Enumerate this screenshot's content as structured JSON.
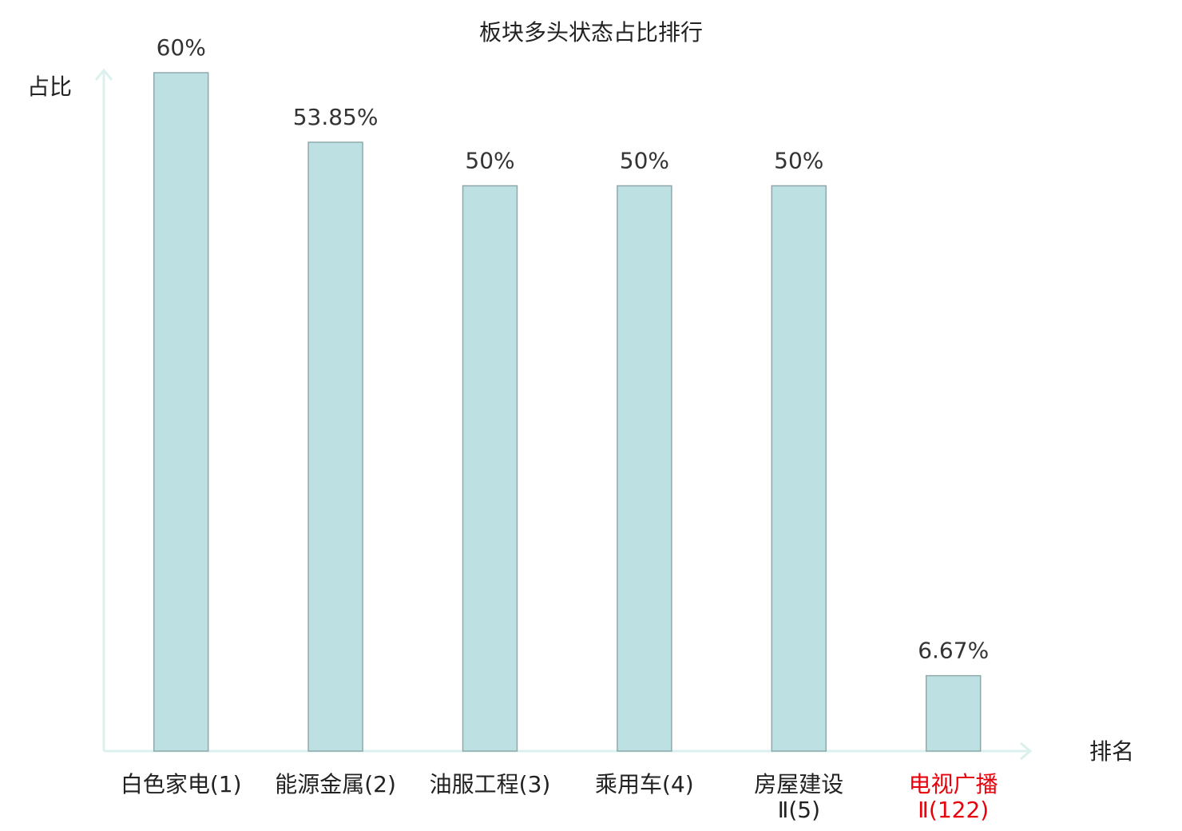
{
  "chart_data": {
    "type": "bar",
    "title": "板块多头状态占比排行",
    "y_label": "占比",
    "x_label": "排名",
    "categories": [
      "白色家电(1)",
      "能源金属(2)",
      "油服工程(3)",
      "乘用车(4)",
      "房屋建设\nⅡ(5)",
      "电视广播\nⅡ(122)"
    ],
    "category_colors": [
      "#222222",
      "#222222",
      "#222222",
      "#222222",
      "#222222",
      "#e8000b"
    ],
    "values": [
      60,
      53.85,
      50,
      50,
      50,
      6.67
    ],
    "value_labels": [
      "60%",
      "53.85%",
      "50%",
      "50%",
      "50%",
      "6.67%"
    ],
    "color": "#bde0e2",
    "edge_color": "#8fa9ab",
    "axis_color": "#dcf1ee",
    "ylim": [
      0,
      60
    ]
  }
}
